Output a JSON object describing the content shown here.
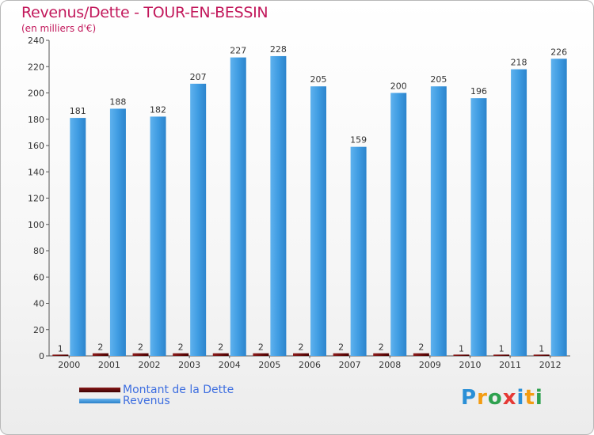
{
  "header": {
    "title": "Revenus/Dette - TOUR-EN-BESSIN",
    "subtitle": "(en milliers d'€)"
  },
  "chart_data": {
    "type": "bar",
    "categories": [
      "2000",
      "2001",
      "2002",
      "2003",
      "2004",
      "2005",
      "2006",
      "2007",
      "2008",
      "2009",
      "2010",
      "2011",
      "2012"
    ],
    "series": [
      {
        "name": "Montant de la Dette",
        "color": "#6b0000",
        "values": [
          1,
          2,
          2,
          2,
          2,
          2,
          2,
          2,
          2,
          2,
          1,
          1,
          1
        ]
      },
      {
        "name": "Revenus",
        "color": "#3a93dc",
        "values": [
          181,
          188,
          182,
          207,
          227,
          228,
          205,
          159,
          200,
          205,
          196,
          218,
          226
        ]
      }
    ],
    "ylim": [
      0,
      240
    ],
    "yticks": [
      0,
      20,
      40,
      60,
      80,
      100,
      120,
      140,
      160,
      180,
      200,
      220,
      240
    ],
    "grid": false,
    "legend_position": "bottom-left"
  },
  "legend": {
    "items": [
      {
        "label": "Montant de la Dette",
        "color": "#6b0000"
      },
      {
        "label": "Revenus",
        "color": "#3a93dc"
      }
    ]
  },
  "logo": {
    "letters": [
      "P",
      "r",
      "o",
      "x",
      "i",
      "t",
      "i"
    ],
    "colors": [
      "#2a8fd6",
      "#f39c12",
      "#2ea14f",
      "#e53935",
      "#2a8fd6",
      "#f39c12",
      "#2ea14f"
    ]
  }
}
